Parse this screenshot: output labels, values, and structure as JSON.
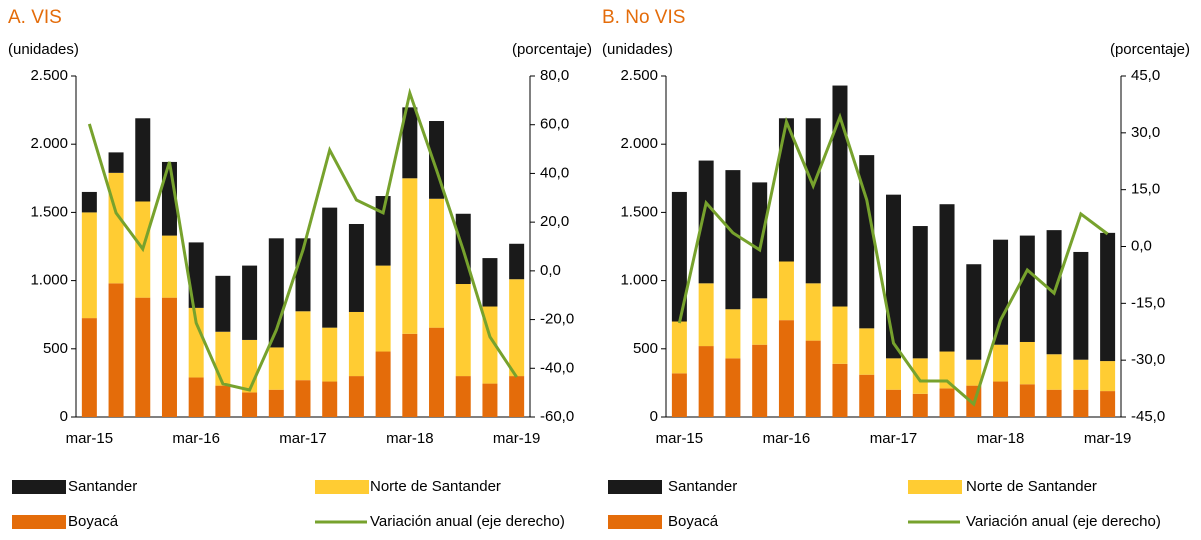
{
  "chart_data": [
    {
      "type": "bar",
      "title": "A. VIS",
      "y_label": "(unidades)",
      "y2_label": "(porcentaje)",
      "categories": [
        "mar-15",
        null,
        null,
        null,
        "mar-16",
        null,
        null,
        null,
        "mar-17",
        null,
        null,
        null,
        "mar-18",
        null,
        null,
        null,
        "mar-19"
      ],
      "series": [
        {
          "name": "Boyacá",
          "color": "#e46c0a",
          "values": [
            725,
            980,
            875,
            875,
            290,
            230,
            180,
            200,
            270,
            260,
            300,
            480,
            610,
            655,
            300,
            245,
            300
          ]
        },
        {
          "name": "Norte de Santander",
          "color": "#ffcc33",
          "values": [
            775,
            810,
            705,
            455,
            510,
            395,
            385,
            310,
            505,
            395,
            470,
            630,
            1140,
            945,
            675,
            565,
            710
          ]
        },
        {
          "name": "Santander",
          "color": "#1a1a1a",
          "values": [
            150,
            150,
            610,
            540,
            480,
            410,
            545,
            800,
            535,
            880,
            645,
            510,
            520,
            570,
            515,
            355,
            260
          ]
        },
        {
          "name": "Variación anual (eje derecho)",
          "color": "#77a22d",
          "type": "line",
          "axis": "y2",
          "values": [
            60.3,
            23.8,
            9.0,
            44.7,
            -21.4,
            -46.4,
            -48.9,
            -24.3,
            8.6,
            49.6,
            29.1,
            23.8,
            73.0,
            41.4,
            8.6,
            -27.1,
            -43.6
          ]
        }
      ],
      "ylim": [
        0,
        2500
      ],
      "yticks": [
        0,
        500,
        {
          "value": 1000,
          "label": "1.000"
        },
        {
          "value": 1500,
          "label": "1.500"
        },
        {
          "value": 2000,
          "label": "2.000"
        },
        {
          "value": 2500,
          "label": "2.500"
        }
      ],
      "y2lim": [
        -60,
        80
      ],
      "y2ticks": [
        {
          "value": -60,
          "label": "-60,0"
        },
        {
          "value": -40,
          "label": "-40,0"
        },
        {
          "value": -20,
          "label": "-20,0"
        },
        {
          "value": 0,
          "label": "0,0"
        },
        {
          "value": 20,
          "label": "20,0"
        },
        {
          "value": 40,
          "label": "40,0"
        },
        {
          "value": 60,
          "label": "60,0"
        },
        {
          "value": 80,
          "label": "80,0"
        }
      ]
    },
    {
      "type": "bar",
      "title": "B. No VIS",
      "y_label": "(unidades)",
      "y2_label": "(porcentaje)",
      "categories": [
        "mar-15",
        null,
        null,
        null,
        "mar-16",
        null,
        null,
        null,
        "mar-17",
        null,
        null,
        null,
        "mar-18",
        null,
        null,
        null,
        "mar-19"
      ],
      "series": [
        {
          "name": "Boyacá",
          "color": "#e46c0a",
          "values": [
            320,
            520,
            430,
            530,
            710,
            560,
            390,
            310,
            200,
            170,
            210,
            230,
            260,
            240,
            200,
            200,
            190
          ]
        },
        {
          "name": "Norte de Santander",
          "color": "#ffcc33",
          "values": [
            380,
            460,
            360,
            340,
            430,
            420,
            420,
            340,
            230,
            260,
            270,
            190,
            270,
            310,
            260,
            220,
            220
          ]
        },
        {
          "name": "Santander",
          "color": "#1a1a1a",
          "values": [
            950,
            900,
            1020,
            850,
            1050,
            1210,
            1620,
            1270,
            1200,
            970,
            1080,
            700,
            770,
            780,
            910,
            790,
            940
          ]
        },
        {
          "name": "Variación anual (eje derecho)",
          "color": "#77a22d",
          "type": "line",
          "axis": "y2",
          "values": [
            -20.2,
            11.5,
            3.6,
            -0.9,
            32.9,
            16.0,
            34.2,
            12.3,
            -25.5,
            -35.5,
            -35.5,
            -41.6,
            -19.4,
            -6.2,
            -12.3,
            8.6,
            3.3
          ]
        }
      ],
      "ylim": [
        0,
        2500
      ],
      "yticks": [
        0,
        500,
        {
          "value": 1000,
          "label": "1.000"
        },
        {
          "value": 1500,
          "label": "1.500"
        },
        {
          "value": 2000,
          "label": "2.000"
        },
        {
          "value": 2500,
          "label": "2.500"
        }
      ],
      "y2lim": [
        -45,
        45
      ],
      "y2ticks": [
        {
          "value": -45,
          "label": "-45,0"
        },
        {
          "value": -30,
          "label": "-30,0"
        },
        {
          "value": -15,
          "label": "-15,0"
        },
        {
          "value": 0,
          "label": "0,0"
        },
        {
          "value": 15,
          "label": "15,0"
        },
        {
          "value": 30,
          "label": "30,0"
        },
        {
          "value": 45,
          "label": "45,0"
        }
      ]
    }
  ]
}
